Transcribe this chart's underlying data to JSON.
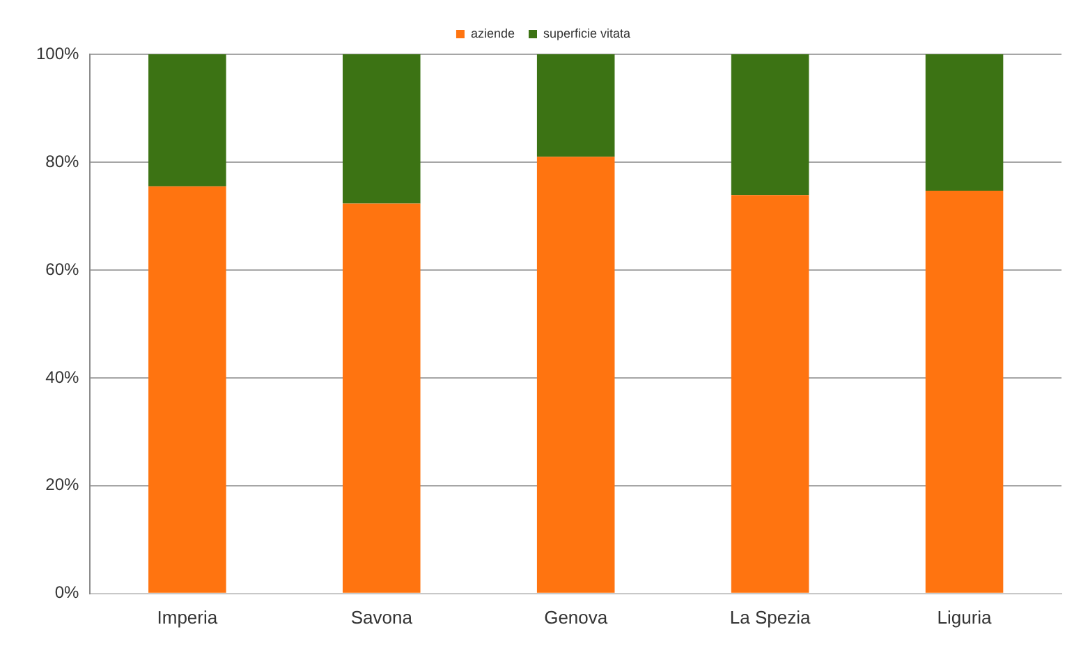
{
  "chart_data": {
    "type": "bar",
    "stacked": true,
    "categories": [
      "Imperia",
      "Savona",
      "Genova",
      "La Spezia",
      "Liguria"
    ],
    "series": [
      {
        "name": "aziende",
        "color": "#ff7410",
        "values": [
          75.5,
          72.3,
          81,
          73.9,
          74.7
        ]
      },
      {
        "name": "superficie vitata",
        "color": "#3c7314",
        "values": [
          24.5,
          27.7,
          19,
          26.1,
          25.3
        ]
      }
    ],
    "ylim": [
      0,
      100
    ],
    "yticks": [
      {
        "value": 0,
        "label": "0%"
      },
      {
        "value": 20,
        "label": "20%"
      },
      {
        "value": 40,
        "label": "40%"
      },
      {
        "value": 60,
        "label": "60%"
      },
      {
        "value": 80,
        "label": "80%"
      },
      {
        "value": 100,
        "label": "100%"
      }
    ],
    "grid": "y",
    "legend": "top"
  }
}
